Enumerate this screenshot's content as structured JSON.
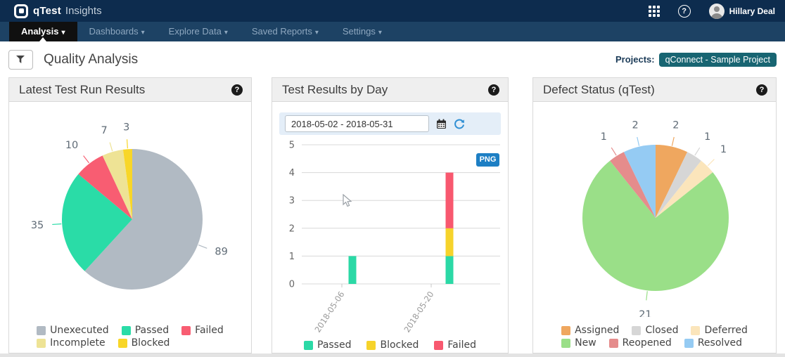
{
  "topbar": {
    "logo_text": "qTest",
    "logo_sub": "Insights",
    "user_name": "Hillary Deal"
  },
  "navbar": {
    "items": [
      {
        "label": "Analysis",
        "active": true
      },
      {
        "label": "Dashboards",
        "active": false
      },
      {
        "label": "Explore Data",
        "active": false
      },
      {
        "label": "Saved Reports",
        "active": false
      },
      {
        "label": "Settings",
        "active": false
      }
    ]
  },
  "page": {
    "title": "Quality Analysis",
    "projects_label": "Projects:",
    "project_badge": "qConnect - Sample Project"
  },
  "icons": {
    "help_glyph": "?"
  },
  "chart_data": [
    {
      "type": "pie",
      "title": "Latest Test Run Results",
      "labels": [
        "Unexecuted",
        "Passed",
        "Failed",
        "Incomplete",
        "Blocked"
      ],
      "values": [
        89,
        35,
        10,
        7,
        3
      ],
      "colors": [
        "#b1bac3",
        "#2adca7",
        "#f85d72",
        "#eee395",
        "#f8d628"
      ],
      "legend_rows": [
        3,
        2
      ],
      "legend_position": "bottom"
    },
    {
      "type": "stacked_bar",
      "title": "Test Results by Day",
      "date_range": "2018-05-02 - 2018-05-31",
      "export_button": "PNG",
      "x_ticks": [
        "2018-05-06",
        "2018-05-20"
      ],
      "series": [
        {
          "name": "Passed",
          "color": "#2bd9a6",
          "values": [
            1,
            1
          ]
        },
        {
          "name": "Blocked",
          "color": "#f6d32b",
          "values": [
            0,
            1
          ]
        },
        {
          "name": "Failed",
          "color": "#f8586f",
          "values": [
            0,
            2
          ]
        }
      ],
      "ylim": [
        0,
        5
      ],
      "y_ticks": [
        0,
        1,
        2,
        3,
        4,
        5
      ],
      "grid": true,
      "legend_position": "bottom"
    },
    {
      "type": "pie",
      "title": "Defect Status (qTest)",
      "labels": [
        "Assigned",
        "Closed",
        "Deferred",
        "New",
        "Reopened",
        "Resolved"
      ],
      "values": [
        2,
        1,
        1,
        21,
        1,
        2
      ],
      "colors": [
        "#efa75f",
        "#d6d6d6",
        "#fbe5bb",
        "#9adf88",
        "#e58c8c",
        "#95cbf3"
      ],
      "legend_rows": [
        3,
        3
      ],
      "legend_position": "bottom"
    }
  ]
}
